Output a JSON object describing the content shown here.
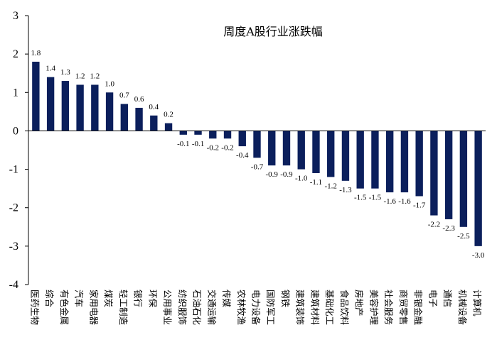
{
  "chart_data": {
    "type": "bar",
    "title": "周度A股行业涨跌幅",
    "xlabel": "",
    "ylabel": "",
    "ylim": [
      -4,
      3
    ],
    "yticks": [
      "3",
      "2",
      "1",
      "0",
      "-1",
      "-2",
      "-3",
      "-4"
    ],
    "grid": false,
    "bar_color": "#0b1f5c",
    "categories": [
      "医药生物",
      "综合",
      "有色金属",
      "汽车",
      "家用电器",
      "煤炭",
      "轻工制造",
      "银行",
      "环保",
      "公用事业",
      "纺织服饰",
      "石油石化",
      "交通运输",
      "传媒",
      "农林牧渔",
      "电力设备",
      "国防军工",
      "钢铁",
      "建筑装饰",
      "建筑材料",
      "基础化工",
      "食品饮料",
      "房地产",
      "美容护理",
      "社会服务",
      "商贸零售",
      "非银金融",
      "电子",
      "通信",
      "机械设备",
      "计算机"
    ],
    "values": [
      1.8,
      1.4,
      1.3,
      1.2,
      1.2,
      1.0,
      0.7,
      0.6,
      0.4,
      0.2,
      -0.1,
      -0.1,
      -0.2,
      -0.2,
      -0.4,
      -0.7,
      -0.9,
      -0.9,
      -1.0,
      -1.1,
      -1.2,
      -1.3,
      -1.5,
      -1.5,
      -1.6,
      -1.6,
      -1.7,
      -2.2,
      -2.3,
      -2.5,
      -3.0
    ],
    "labels": [
      "1.8",
      "1.4",
      "1.3",
      "1.2",
      "1.2",
      "1.0",
      "0.7",
      "0.6",
      "0.4",
      "0.2",
      "-0.1",
      "-0.1",
      "-0.2",
      "-0.2",
      "-0.4",
      "-0.7",
      "-0.9",
      "-0.9",
      "-1.0",
      "-1.1",
      "-1.2",
      "-1.3",
      "-1.5",
      "-1.5",
      "-1.6",
      "-1.6",
      "-1.7",
      "-2.2",
      "-2.3",
      "-2.5",
      "-3.0"
    ]
  }
}
